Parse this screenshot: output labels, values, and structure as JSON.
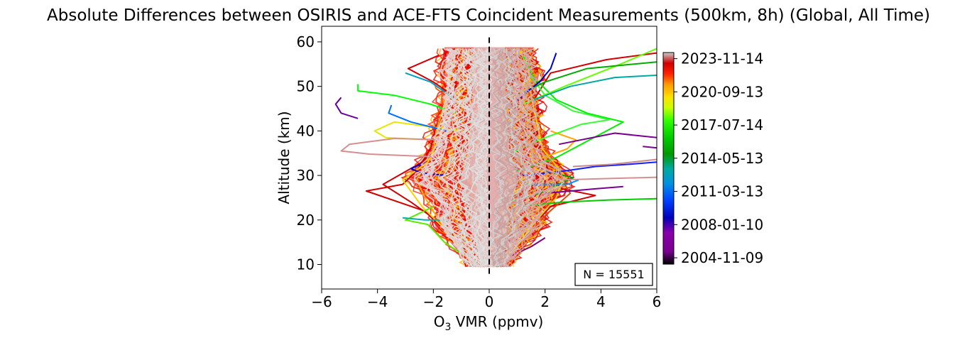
{
  "chart_data": {
    "type": "line",
    "title": "Absolute Differences between OSIRIS and ACE-FTS Coincident Measurements (500km, 8h) (Global, All Time)",
    "xlabel": "O3 VMR (ppmv)",
    "xlabel_main": "O",
    "xlabel_sub": "3",
    "xlabel_rest": " VMR (ppmv)",
    "ylabel": "Altitude (km)",
    "xlim": [
      -6,
      6
    ],
    "ylim": [
      4.5,
      63.5
    ],
    "xticks": [
      -6,
      -4,
      -2,
      0,
      2,
      4,
      6
    ],
    "xtick_labels": [
      "−6",
      "−4",
      "−2",
      "0",
      "2",
      "4",
      "6"
    ],
    "yticks": [
      10,
      20,
      30,
      40,
      50,
      60
    ],
    "ytick_labels": [
      "10",
      "20",
      "30",
      "40",
      "50",
      "60"
    ],
    "reference_line": {
      "x": 0,
      "style": "dashed",
      "y_range": [
        7.5,
        61
      ]
    },
    "annotation": "N = 15551",
    "annotation_placement": "bottom-right",
    "grid": false,
    "colorbar": {
      "colormap": "nipy_spectral",
      "placement": "right",
      "tick_labels": [
        "2004-11-09",
        "2008-01-10",
        "2011-03-13",
        "2014-05-13",
        "2017-07-14",
        "2020-09-13",
        "2023-11-14"
      ],
      "range_start": "2004-04-01",
      "range_end": "2024-06-15"
    },
    "envelope": {
      "description": "dense spread of thousands of profiles",
      "altitudes": [
        9.5,
        12,
        15,
        18,
        20,
        22,
        25,
        28,
        30,
        32,
        35,
        38,
        40,
        42,
        45,
        48,
        50,
        53,
        56,
        58.8
      ],
      "left": [
        -0.7,
        -1.0,
        -1.4,
        -1.9,
        -2.0,
        -1.9,
        -2.2,
        -2.7,
        -2.9,
        -2.6,
        -2.2,
        -2.1,
        -2.0,
        -1.9,
        -1.8,
        -1.7,
        -1.7,
        -1.8,
        -1.7,
        -1.6
      ],
      "right": [
        0.7,
        1.0,
        1.4,
        1.9,
        2.0,
        1.9,
        2.4,
        2.8,
        2.9,
        2.6,
        2.1,
        2.0,
        1.9,
        1.8,
        1.8,
        1.7,
        1.7,
        1.8,
        1.6,
        1.6
      ]
    },
    "series": [
      {
        "color": "#d00000",
        "points": [
          [
            -0.3,
            9.5
          ],
          [
            -0.9,
            13
          ],
          [
            -1.5,
            17
          ],
          [
            -2.3,
            22
          ],
          [
            -4.4,
            26.5
          ],
          [
            -3.1,
            28
          ],
          [
            -2.6,
            31
          ],
          [
            -2.1,
            36
          ],
          [
            -1.9,
            41
          ],
          [
            -1.5,
            44
          ],
          [
            -1.3,
            48
          ],
          [
            -2.0,
            51
          ],
          [
            -2.9,
            54
          ],
          [
            -1.8,
            57
          ]
        ]
      },
      {
        "color": "#d00000",
        "points": [
          [
            0.3,
            9.5
          ],
          [
            1.0,
            14
          ],
          [
            1.6,
            19
          ],
          [
            2.2,
            23
          ],
          [
            3.8,
            25.5
          ],
          [
            2.6,
            27
          ],
          [
            2.2,
            30
          ],
          [
            1.8,
            36
          ],
          [
            1.5,
            42
          ],
          [
            1.6,
            47
          ],
          [
            2.2,
            53
          ],
          [
            4.2,
            56
          ],
          [
            6.0,
            57.5
          ]
        ]
      },
      {
        "color": "#d00000",
        "points": [
          [
            -0.6,
            11
          ],
          [
            -1.4,
            16
          ],
          [
            -1.9,
            20
          ],
          [
            -2.8,
            24
          ],
          [
            -3.8,
            28
          ],
          [
            -2.4,
            33
          ],
          [
            -1.6,
            38
          ],
          [
            -1.4,
            45
          ],
          [
            -1.2,
            50
          ],
          [
            -1.1,
            57
          ]
        ]
      },
      {
        "color": "#e64a00",
        "points": [
          [
            0.5,
            11
          ],
          [
            1.3,
            16
          ],
          [
            2.0,
            21
          ],
          [
            2.9,
            26
          ],
          [
            2.4,
            31
          ],
          [
            2.0,
            37
          ],
          [
            1.6,
            43
          ],
          [
            1.4,
            50
          ],
          [
            1.2,
            57
          ]
        ]
      },
      {
        "color": "#ffaa00",
        "points": [
          [
            -0.5,
            10
          ],
          [
            -1.2,
            15
          ],
          [
            -1.8,
            20
          ],
          [
            -2.3,
            25
          ],
          [
            -2.6,
            29
          ],
          [
            -2.0,
            35
          ],
          [
            -1.9,
            40
          ],
          [
            -1.6,
            46
          ],
          [
            -1.4,
            52
          ],
          [
            -1.2,
            58
          ]
        ]
      },
      {
        "color": "#ffcc00",
        "points": [
          [
            0.4,
            10
          ],
          [
            1.1,
            15
          ],
          [
            1.7,
            20
          ],
          [
            2.4,
            25
          ],
          [
            2.7,
            30
          ],
          [
            1.9,
            36
          ],
          [
            1.7,
            42
          ],
          [
            1.5,
            48
          ],
          [
            1.4,
            54
          ],
          [
            1.1,
            58
          ]
        ]
      },
      {
        "color": "#ffd000",
        "points": [
          [
            -1.0,
            13
          ],
          [
            -1.6,
            18
          ],
          [
            -2.4,
            23
          ],
          [
            -3.1,
            29
          ],
          [
            -2.2,
            33
          ],
          [
            -1.8,
            38
          ],
          [
            -1.6,
            43
          ],
          [
            -1.5,
            49
          ],
          [
            -1.3,
            55
          ]
        ]
      },
      {
        "color": "#e6e600",
        "points": [
          [
            -1.0,
            40
          ],
          [
            -3.4,
            42
          ],
          [
            -4.1,
            40
          ],
          [
            -3.7,
            38.5
          ],
          [
            -2.2,
            38
          ]
        ]
      },
      {
        "color": "#ffa500",
        "points": [
          [
            1.5,
            33
          ],
          [
            2.8,
            36
          ],
          [
            3.1,
            38
          ],
          [
            2.2,
            40
          ]
        ]
      },
      {
        "color": "#00ee00",
        "points": [
          [
            1.0,
            31
          ],
          [
            2.4,
            34
          ],
          [
            3.6,
            38
          ],
          [
            4.5,
            41
          ],
          [
            4.8,
            42
          ],
          [
            3.5,
            44
          ],
          [
            2.4,
            47
          ],
          [
            1.6,
            52
          ],
          [
            1.2,
            57
          ]
        ]
      },
      {
        "color": "#00ff00",
        "points": [
          [
            -1.2,
            44
          ],
          [
            -2.1,
            46
          ],
          [
            -3.4,
            48
          ],
          [
            -4.7,
            49
          ],
          [
            -4.7,
            50.5
          ]
        ]
      },
      {
        "color": "#33ff33",
        "points": [
          [
            0.8,
            35
          ],
          [
            1.8,
            38
          ],
          [
            3.3,
            41.5
          ],
          [
            4.3,
            42.5
          ],
          [
            3.0,
            44.5
          ],
          [
            2.0,
            48
          ],
          [
            1.4,
            53
          ]
        ]
      },
      {
        "color": "#66ff00",
        "points": [
          [
            1.2,
            46
          ],
          [
            2.7,
            50
          ],
          [
            4.7,
            55
          ],
          [
            6.0,
            58.5
          ]
        ]
      },
      {
        "color": "#55ee00",
        "points": [
          [
            -0.9,
            12
          ],
          [
            -1.6,
            15
          ],
          [
            -2.2,
            19
          ],
          [
            -3.0,
            20
          ],
          [
            -2.0,
            23
          ]
        ]
      },
      {
        "color": "#00cc00",
        "points": [
          [
            1.0,
            23
          ],
          [
            2.6,
            24
          ],
          [
            4.3,
            24.5
          ],
          [
            6.0,
            24.8
          ]
        ]
      },
      {
        "color": "#00aa00",
        "points": [
          [
            1.0,
            48
          ],
          [
            2.0,
            51
          ],
          [
            3.5,
            54
          ],
          [
            6.0,
            55.5
          ]
        ]
      },
      {
        "color": "#009900",
        "points": [
          [
            0.7,
            24
          ],
          [
            1.8,
            26
          ],
          [
            3.0,
            29.5
          ],
          [
            2.0,
            31
          ]
        ]
      },
      {
        "color": "#00a8a0",
        "points": [
          [
            1.6,
            47
          ],
          [
            2.9,
            50
          ],
          [
            4.5,
            52
          ],
          [
            6.0,
            52.5
          ]
        ]
      },
      {
        "color": "#00b0b0",
        "points": [
          [
            -1.4,
            20
          ],
          [
            -2.3,
            20
          ],
          [
            -3.1,
            20.5
          ]
        ]
      },
      {
        "color": "#00a0c0",
        "points": [
          [
            -1.2,
            47
          ],
          [
            -2.1,
            51
          ],
          [
            -3.0,
            53
          ]
        ]
      },
      {
        "color": "#0070ff",
        "points": [
          [
            -1.5,
            40
          ],
          [
            -2.8,
            42
          ],
          [
            -3.6,
            44
          ],
          [
            -3.5,
            45.8
          ]
        ]
      },
      {
        "color": "#0090ff",
        "points": [
          [
            1.2,
            28
          ],
          [
            2.8,
            28
          ],
          [
            3.2,
            29
          ]
        ]
      },
      {
        "color": "#0000cc",
        "points": [
          [
            -1.5,
            30
          ],
          [
            -2.4,
            30.5
          ],
          [
            -2.8,
            31.5
          ],
          [
            -2.3,
            33
          ]
        ]
      },
      {
        "color": "#0000dd",
        "points": [
          [
            1.0,
            47
          ],
          [
            1.8,
            51
          ],
          [
            2.2,
            54
          ],
          [
            2.4,
            57.5
          ]
        ]
      },
      {
        "color": "#1020ff",
        "points": [
          [
            1.2,
            30
          ],
          [
            2.7,
            31
          ],
          [
            3.8,
            32
          ],
          [
            5.0,
            32.5
          ],
          [
            6.0,
            33
          ]
        ]
      },
      {
        "color": "#6a0099",
        "points": [
          [
            -5.3,
            47.5
          ],
          [
            -5.5,
            46
          ],
          [
            -5.3,
            44
          ],
          [
            -4.7,
            42.8
          ]
        ]
      },
      {
        "color": "#800080",
        "points": [
          [
            0.8,
            12
          ],
          [
            1.5,
            14
          ],
          [
            2.0,
            16
          ]
        ]
      },
      {
        "color": "#7a0090",
        "points": [
          [
            2.5,
            37
          ],
          [
            4.5,
            39.5
          ],
          [
            6.0,
            38.5
          ]
        ]
      },
      {
        "color": "#7a0090",
        "points": [
          [
            2.0,
            26
          ],
          [
            3.8,
            27
          ],
          [
            4.8,
            27.5
          ]
        ]
      },
      {
        "color": "#7a0090",
        "points": [
          [
            5.5,
            36.5
          ],
          [
            6.0,
            36.2
          ]
        ]
      },
      {
        "color": "#d49090",
        "points": [
          [
            -1.6,
            38
          ],
          [
            -3.4,
            38.3
          ],
          [
            -5.0,
            37
          ],
          [
            -5.3,
            35.5
          ],
          [
            -4.3,
            34.8
          ],
          [
            -2.0,
            34.2
          ]
        ]
      },
      {
        "color": "#d49090",
        "points": [
          [
            2.5,
            29
          ],
          [
            4.2,
            29.3
          ],
          [
            6.0,
            29.6
          ]
        ]
      },
      {
        "color": "#cc8888",
        "points": [
          [
            3.0,
            32
          ],
          [
            4.4,
            32.5
          ],
          [
            6.0,
            33.6
          ]
        ]
      }
    ]
  }
}
